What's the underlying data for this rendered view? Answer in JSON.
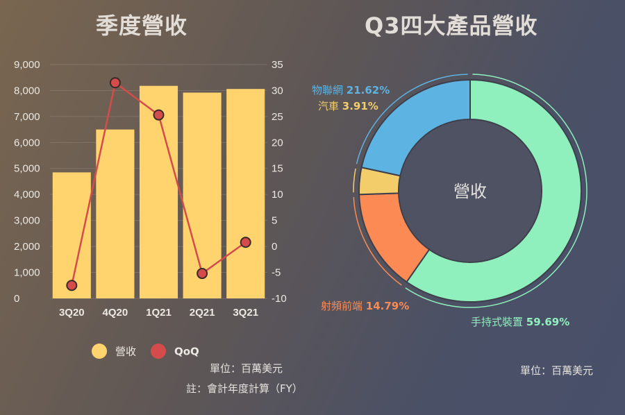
{
  "charts": {
    "left_title": "季度營收",
    "right_title": "Q3四大產品營收"
  },
  "chart_data": [
    {
      "type": "bar",
      "title": "季度營收",
      "categories": [
        "3Q20",
        "4Q20",
        "1Q21",
        "2Q21",
        "3Q21"
      ],
      "series": [
        {
          "name": "營收",
          "type": "bar",
          "axis": "left",
          "color": "#ffd36e",
          "values": [
            4850,
            6500,
            8180,
            7920,
            8060
          ]
        },
        {
          "name": "QoQ",
          "type": "line",
          "axis": "right",
          "color": "#d44b4b",
          "values": [
            -7.5,
            31.5,
            25.3,
            -5.2,
            0.8
          ]
        }
      ],
      "y_left": {
        "min": 0,
        "max": 9000,
        "ticks": [
          "0",
          "1,000",
          "2,000",
          "3,000",
          "4,000",
          "5,000",
          "6,000",
          "7,000",
          "8,000",
          "9,000"
        ]
      },
      "y_right": {
        "min": -10,
        "max": 35,
        "ticks": [
          "-10",
          "-5",
          "0",
          "5",
          "10",
          "15",
          "20",
          "25",
          "30",
          "35"
        ]
      },
      "grid": true,
      "legend": "bottom",
      "unit_note": "單位：百萬美元",
      "fy_note": "註：會計年度計算（FY）"
    },
    {
      "type": "pie",
      "title": "Q3四大產品營收",
      "center_label": "營收",
      "slices": [
        {
          "name": "手持式裝置",
          "pct_label": "59.69%",
          "value": 59.69,
          "color": "#8ff0bd"
        },
        {
          "name": "射頻前端",
          "pct_label": "14.79%",
          "value": 14.79,
          "color": "#fb8a55"
        },
        {
          "name": "汽車",
          "pct_label": "3.91%",
          "value": 3.91,
          "color": "#f2cd6a"
        },
        {
          "name": "物聯網",
          "pct_label": "21.62%",
          "value": 21.62,
          "color": "#5db3e2"
        }
      ],
      "unit_note": "單位：百萬美元"
    }
  ]
}
